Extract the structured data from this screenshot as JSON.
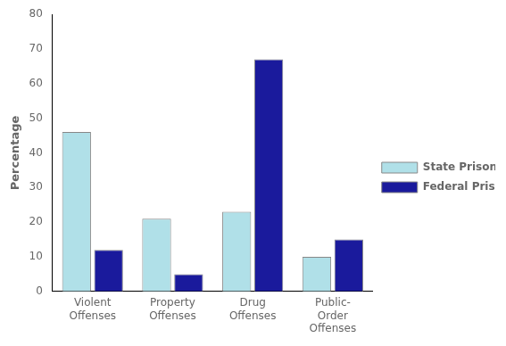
{
  "chart_data": {
    "type": "bar",
    "categories": [
      "Violent\nOffenses",
      "Property\nOffenses",
      "Drug\nOffenses",
      "Public-\nOrder\nOffenses"
    ],
    "series": [
      {
        "name": "State Prison",
        "color": "#b0e0e8",
        "values": [
          46,
          21,
          23,
          10
        ]
      },
      {
        "name": "Federal Prison",
        "color": "#1a1a9c",
        "values": [
          12,
          5,
          67,
          15
        ]
      }
    ],
    "ylabel": "Percentage",
    "ylim": [
      0,
      80
    ],
    "yticks": [
      0,
      10,
      20,
      30,
      40,
      50,
      60,
      70,
      80
    ],
    "grid": false,
    "legend": "right"
  }
}
